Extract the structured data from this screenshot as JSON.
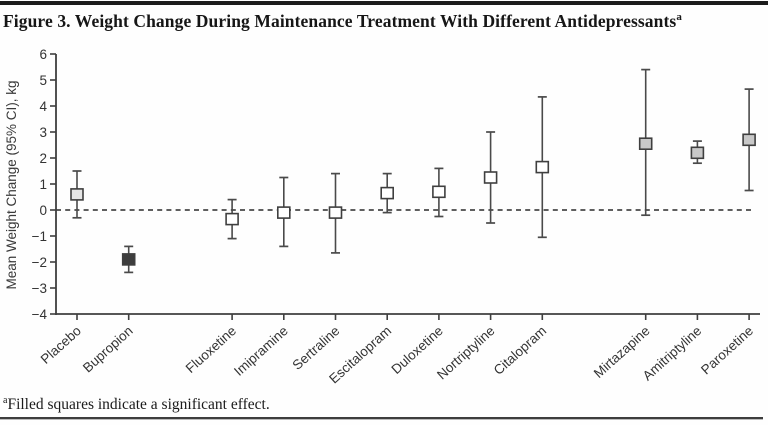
{
  "header": {
    "title": "Figure 3. Weight Change During Maintenance Treatment With Different Antidepressants",
    "superscript": "a"
  },
  "footnote": {
    "marker": "a",
    "text": "Filled squares indicate a significant effect."
  },
  "chart_data": {
    "type": "scatter",
    "subtype": "error-bar-forest-plot",
    "title": "Figure 3. Weight Change During Maintenance Treatment With Different Antidepressants",
    "xlabel": "",
    "ylabel": "Mean Weight Change (95% CI), kg",
    "ylim": [
      -4,
      6
    ],
    "yticks": [
      6,
      5,
      4,
      3,
      2,
      1,
      0,
      -1,
      -2,
      -3,
      -4
    ],
    "grid": false,
    "zero_reference_line": {
      "value": 0,
      "style": "dashed"
    },
    "legend_note": "Filled squares indicate a significant effect.",
    "categories": [
      "Placebo",
      "Bupropion",
      "Fluoxetine",
      "Imipramine",
      "Sertraline",
      "Escitalopram",
      "Duloxetine",
      "Nortriptyline",
      "Citalopram",
      "Mirtazapine",
      "Amitriptyline",
      "Paroxetine"
    ],
    "points": [
      {
        "label": "Placebo",
        "mean": 0.6,
        "ci_low": -0.3,
        "ci_high": 1.5,
        "significant": false,
        "fill": "#e6e6e6",
        "slot": 0
      },
      {
        "label": "Bupropion",
        "mean": -1.9,
        "ci_low": -2.4,
        "ci_high": -1.4,
        "significant": true,
        "fill": "#3d3d3d",
        "slot": 1
      },
      {
        "label": "Fluoxetine",
        "mean": -0.35,
        "ci_low": -1.1,
        "ci_high": 0.4,
        "significant": false,
        "fill": "#ffffff",
        "slot": 3
      },
      {
        "label": "Imipramine",
        "mean": -0.1,
        "ci_low": -1.4,
        "ci_high": 1.25,
        "significant": false,
        "fill": "#ffffff",
        "slot": 4
      },
      {
        "label": "Sertraline",
        "mean": -0.1,
        "ci_low": -1.65,
        "ci_high": 1.4,
        "significant": false,
        "fill": "#ffffff",
        "slot": 5
      },
      {
        "label": "Escitalopram",
        "mean": 0.65,
        "ci_low": -0.1,
        "ci_high": 1.4,
        "significant": false,
        "fill": "#ffffff",
        "slot": 6
      },
      {
        "label": "Duloxetine",
        "mean": 0.7,
        "ci_low": -0.25,
        "ci_high": 1.6,
        "significant": false,
        "fill": "#ffffff",
        "slot": 7
      },
      {
        "label": "Nortriptyline",
        "mean": 1.25,
        "ci_low": -0.5,
        "ci_high": 3.0,
        "significant": false,
        "fill": "#ffffff",
        "slot": 8
      },
      {
        "label": "Citalopram",
        "mean": 1.65,
        "ci_low": -1.05,
        "ci_high": 4.35,
        "significant": false,
        "fill": "#ffffff",
        "slot": 9
      },
      {
        "label": "Mirtazapine",
        "mean": 2.55,
        "ci_low": -0.2,
        "ci_high": 5.4,
        "significant": true,
        "fill": "#c8c8c8",
        "slot": 11
      },
      {
        "label": "Amitriptyline",
        "mean": 2.2,
        "ci_low": 1.8,
        "ci_high": 2.65,
        "significant": true,
        "fill": "#c8c8c8",
        "slot": 12
      },
      {
        "label": "Paroxetine",
        "mean": 2.7,
        "ci_low": 0.75,
        "ci_high": 4.65,
        "significant": true,
        "fill": "#c8c8c8",
        "slot": 13
      }
    ],
    "colors": {
      "axis": "#3f3f3f",
      "error_bar": "#4a4a4a",
      "square_border": "#3f3f3f",
      "dashed_line": "#2a2a2a",
      "tick_label": "#333333",
      "significant_fill": "#c8c8c8",
      "open_fill": "#ffffff",
      "bupropion_fill": "#3d3d3d"
    }
  }
}
